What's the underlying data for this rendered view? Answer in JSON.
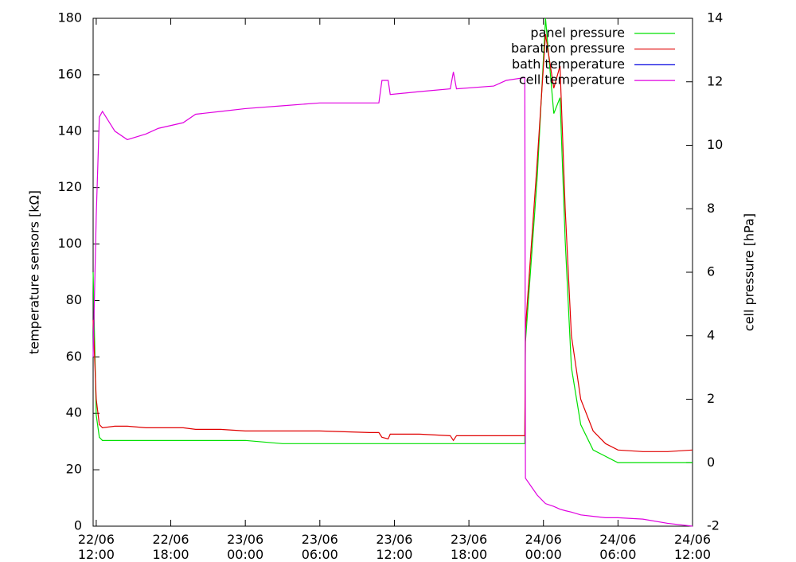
{
  "chart_data": {
    "type": "line",
    "ylabel": "temperature sensors [kΩ]",
    "y2label": "cell pressure [hPa]",
    "xlim": [
      "22/06 11:45",
      "24/06 12:00"
    ],
    "xticks": [
      "22/06 12:00",
      "22/06 18:00",
      "23/06 00:00",
      "23/06 06:00",
      "23/06 12:00",
      "23/06 18:00",
      "24/06 00:00",
      "24/06 06:00",
      "24/06 12:00"
    ],
    "ylim": [
      0,
      180
    ],
    "yticks": [
      0,
      20,
      40,
      60,
      80,
      100,
      120,
      140,
      160,
      180
    ],
    "y2lim": [
      -2,
      14
    ],
    "y2ticks": [
      -2,
      0,
      2,
      4,
      6,
      8,
      10,
      12,
      14
    ],
    "legend": "top-right",
    "x": [
      "22/06 11:45",
      "22/06 12:00",
      "22/06 12:15",
      "22/06 12:30",
      "22/06 13:30",
      "22/06 14:30",
      "22/06 16:00",
      "22/06 17:00",
      "22/06 19:00",
      "22/06 20:00",
      "22/06 22:00",
      "23/06 00:00",
      "23/06 03:00",
      "23/06 06:00",
      "23/06 10:00",
      "23/06 10:45",
      "23/06 11:00",
      "23/06 11:30",
      "23/06 11:40",
      "23/06 14:00",
      "23/06 16:30",
      "23/06 16:45",
      "23/06 17:00",
      "23/06 20:00",
      "23/06 21:00",
      "23/06 22:30",
      "23/06 22:33",
      "23/06 23:30",
      "24/06 00:10",
      "24/06 00:50",
      "24/06 01:20",
      "24/06 01:45",
      "24/06 02:15",
      "24/06 03:00",
      "24/06 04:00",
      "24/06 05:00",
      "24/06 06:00",
      "24/06 08:00",
      "24/06 10:00",
      "24/06 12:00"
    ],
    "series": [
      {
        "name": "panel pressure",
        "color": "#00e000",
        "axis": "y2",
        "values": [
          6,
          1.5,
          0.8,
          0.7,
          0.7,
          0.7,
          0.7,
          0.7,
          0.7,
          0.7,
          0.7,
          0.7,
          0.6,
          0.6,
          0.6,
          0.6,
          0.6,
          0.6,
          0.6,
          0.6,
          0.6,
          0.6,
          0.6,
          0.6,
          0.6,
          0.6,
          3.8,
          9,
          14,
          11,
          11.5,
          7,
          3,
          1.2,
          0.4,
          0.2,
          0,
          0,
          0,
          0
        ]
      },
      {
        "name": "baratron pressure",
        "color": "#e00000",
        "axis": "y2",
        "values": [
          4.5,
          2,
          1.2,
          1.1,
          1.15,
          1.15,
          1.1,
          1.1,
          1.1,
          1.05,
          1.05,
          1,
          1,
          1,
          0.95,
          0.95,
          0.8,
          0.75,
          0.9,
          0.9,
          0.85,
          0.7,
          0.85,
          0.85,
          0.85,
          0.85,
          4.2,
          9.5,
          13.5,
          11.8,
          12.5,
          8,
          4,
          2,
          1,
          0.6,
          0.4,
          0.35,
          0.35,
          0.4
        ]
      },
      {
        "name": "bath temperature",
        "color": "#0000e0",
        "values": [
          null,
          null,
          null,
          null,
          null,
          null,
          null,
          null,
          null,
          null,
          null,
          null,
          null,
          null,
          null,
          null,
          null,
          null,
          null,
          null,
          null,
          null,
          null,
          null,
          null,
          null,
          null,
          null,
          null,
          null,
          null,
          null,
          null,
          null,
          null,
          null,
          null,
          null,
          null,
          null
        ]
      },
      {
        "name": "cell temperature",
        "color": "#e000e0",
        "values": [
          60,
          110,
          145,
          147,
          140,
          137,
          139,
          141,
          143,
          146,
          147,
          148,
          149,
          150,
          150,
          150,
          158,
          158,
          153,
          154,
          155,
          161,
          155,
          156,
          158,
          159,
          17,
          11,
          8,
          7,
          6,
          5.5,
          5,
          4,
          3.5,
          3,
          3,
          2.5,
          1,
          0
        ]
      }
    ]
  }
}
